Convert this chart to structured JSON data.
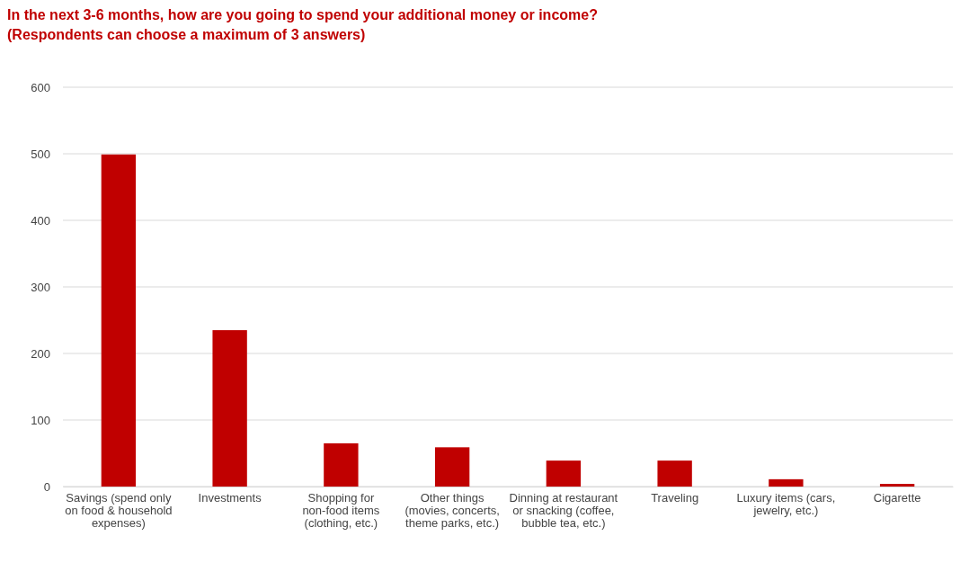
{
  "chart_data": {
    "type": "bar",
    "title": "In the next 3-6 months, how are you going to spend your additional money or income?",
    "subtitle": "(Respondents can choose a maximum of 3 answers)",
    "categories": [
      "Savings (spend only on food & household expenses)",
      "Investments",
      "Shopping for non-food items (clothing, etc.)",
      "Other things (movies, concerts, theme parks, etc.)",
      "Dinning at restaurant or snacking (coffee, bubble tea, etc.)",
      "Traveling",
      "Luxury items (cars, jewelry, etc.)",
      "Cigarette"
    ],
    "values": [
      499,
      235,
      65,
      59,
      39,
      39,
      11,
      4
    ],
    "color": "#c00000",
    "ylim": [
      0,
      600
    ],
    "yticks": [
      0,
      100,
      200,
      300,
      400,
      500,
      600
    ],
    "grid": "y"
  }
}
